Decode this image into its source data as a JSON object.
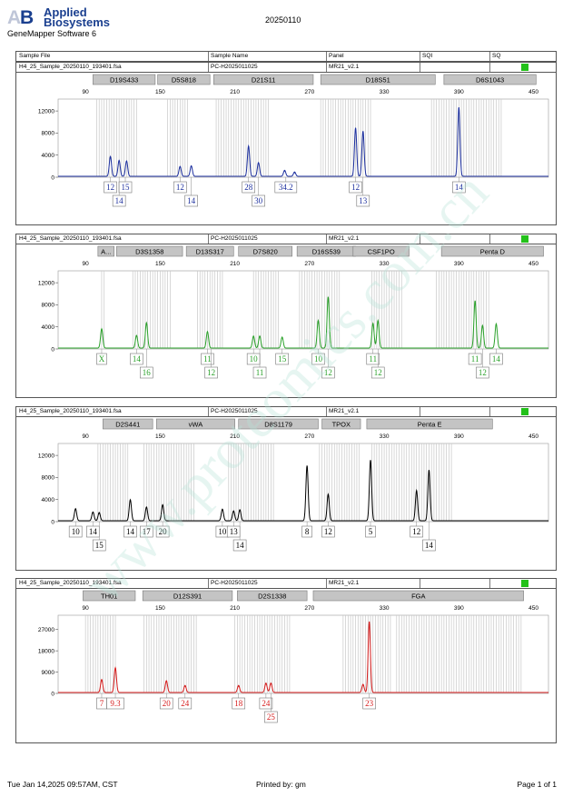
{
  "header": {
    "brand_line1": "Applied",
    "brand_line2": "Biosystems",
    "software": "GeneMapper Software 6",
    "run_date": "20250110",
    "columns": [
      "Sample File",
      "Sample Name",
      "Panel",
      "SQI",
      "SQ"
    ]
  },
  "footer": {
    "printed_on": "Tue Jan 14,2025 09:57AM, CST",
    "printed_by": "Printed by: gm",
    "page": "Page 1 of 1"
  },
  "watermark": "www.proteomics.com.cn",
  "colors": {
    "blue": "#1c2f9e",
    "green": "#2aa12a",
    "black": "#000000",
    "red": "#d61b1b",
    "status": "#23c11a"
  },
  "chart_data": [
    {
      "type": "line",
      "sample_file": "H4_25_Sample_20250110_193401.fsa",
      "sample_name": "PC-H2025011025",
      "panel": "MR21_v2.1",
      "color": "#1c2f9e",
      "x_ticks": [
        90,
        150,
        210,
        270,
        330,
        390,
        450
      ],
      "y_ticks": [
        0,
        4000,
        8000,
        12000
      ],
      "ylim": [
        0,
        13500
      ],
      "xlim": [
        68,
        462
      ],
      "markers": [
        {
          "name": "D19S433",
          "start": 96,
          "end": 146
        },
        {
          "name": "D5S818",
          "start": 148,
          "end": 190
        },
        {
          "name": "D21S11",
          "start": 193,
          "end": 273
        },
        {
          "name": "D18S51",
          "start": 279,
          "end": 371
        },
        {
          "name": "D6S1043",
          "start": 378,
          "end": 452
        }
      ],
      "bins": [
        [
          99,
          131
        ],
        [
          156,
          172
        ],
        [
          195,
          238
        ],
        [
          279,
          320
        ],
        [
          368,
          424
        ]
      ],
      "peaks": [
        {
          "x": 110,
          "height": 3600
        },
        {
          "x": 117,
          "height": 2900
        },
        {
          "x": 123,
          "height": 2800
        },
        {
          "x": 166,
          "height": 1800
        },
        {
          "x": 175,
          "height": 1900
        },
        {
          "x": 221,
          "height": 5500
        },
        {
          "x": 229,
          "height": 2500
        },
        {
          "x": 250,
          "height": 1100
        },
        {
          "x": 258,
          "height": 800
        },
        {
          "x": 307,
          "height": 8800
        },
        {
          "x": 313,
          "height": 8200
        },
        {
          "x": 390,
          "height": 12500
        }
      ],
      "alleles": [
        {
          "label": "12",
          "x": 110,
          "row": 1
        },
        {
          "label": "15",
          "x": 122,
          "row": 1
        },
        {
          "label": "14",
          "x": 117,
          "row": 2
        },
        {
          "label": "12",
          "x": 166,
          "row": 1
        },
        {
          "label": "14",
          "x": 175,
          "row": 2
        },
        {
          "label": "28",
          "x": 221,
          "row": 1
        },
        {
          "label": "30",
          "x": 229,
          "row": 2
        },
        {
          "label": "34.2",
          "x": 251,
          "row": 1
        },
        {
          "label": "12",
          "x": 307,
          "row": 1
        },
        {
          "label": "13",
          "x": 313,
          "row": 2
        },
        {
          "label": "14",
          "x": 390,
          "row": 1
        }
      ]
    },
    {
      "type": "line",
      "sample_file": "H4_25_Sample_20250110_193401.fsa",
      "sample_name": "PC-H2025011025",
      "panel": "MR21_v2.1",
      "color": "#2aa12a",
      "x_ticks": [
        90,
        150,
        210,
        270,
        330,
        390,
        450
      ],
      "y_ticks": [
        0,
        4000,
        8000,
        12000
      ],
      "ylim": [
        0,
        13500
      ],
      "xlim": [
        68,
        462
      ],
      "markers": [
        {
          "name": "A...",
          "start": 100,
          "end": 113
        },
        {
          "name": "D3S1358",
          "start": 115,
          "end": 168
        },
        {
          "name": "D13S317",
          "start": 171,
          "end": 209
        },
        {
          "name": "D7S820",
          "start": 213,
          "end": 256
        },
        {
          "name": "D16S539",
          "start": 260,
          "end": 307
        },
        {
          "name": "CSF1PO",
          "start": 305,
          "end": 350
        },
        {
          "name": "Penta D",
          "start": 376,
          "end": 458
        }
      ],
      "bins": [
        [
          103,
          106
        ],
        [
          128,
          158
        ],
        [
          180,
          200
        ],
        [
          225,
          245
        ],
        [
          262,
          295
        ],
        [
          320,
          345
        ],
        [
          372,
          415
        ]
      ],
      "peaks": [
        {
          "x": 103,
          "height": 3500
        },
        {
          "x": 131,
          "height": 2300
        },
        {
          "x": 139,
          "height": 4600
        },
        {
          "x": 188,
          "height": 3000
        },
        {
          "x": 225,
          "height": 2200
        },
        {
          "x": 230,
          "height": 2200
        },
        {
          "x": 248,
          "height": 2000
        },
        {
          "x": 277,
          "height": 5000
        },
        {
          "x": 285,
          "height": 9300
        },
        {
          "x": 321,
          "height": 4500
        },
        {
          "x": 325,
          "height": 5000
        },
        {
          "x": 403,
          "height": 8600
        },
        {
          "x": 409,
          "height": 4100
        },
        {
          "x": 420,
          "height": 4400
        }
      ],
      "alleles": [
        {
          "label": "X",
          "x": 103,
          "row": 1
        },
        {
          "label": "14",
          "x": 131,
          "row": 1
        },
        {
          "label": "16",
          "x": 139,
          "row": 2
        },
        {
          "label": "11",
          "x": 188,
          "row": 1
        },
        {
          "label": "12",
          "x": 191,
          "row": 2
        },
        {
          "label": "10",
          "x": 225,
          "row": 1
        },
        {
          "label": "11",
          "x": 230,
          "row": 2
        },
        {
          "label": "15",
          "x": 248,
          "row": 1
        },
        {
          "label": "10",
          "x": 277,
          "row": 1
        },
        {
          "label": "12",
          "x": 285,
          "row": 2
        },
        {
          "label": "11",
          "x": 321,
          "row": 1
        },
        {
          "label": "12",
          "x": 325,
          "row": 2
        },
        {
          "label": "11",
          "x": 403,
          "row": 1
        },
        {
          "label": "12",
          "x": 409,
          "row": 2
        },
        {
          "label": "14",
          "x": 420,
          "row": 1
        }
      ]
    },
    {
      "type": "line",
      "sample_file": "H4_25_Sample_20250110_193401.fsa",
      "sample_name": "PC-H2025011025",
      "panel": "MR21_v2.1",
      "color": "#000000",
      "x_ticks": [
        90,
        150,
        210,
        270,
        330,
        390,
        450
      ],
      "y_ticks": [
        0,
        4000,
        8000,
        12000
      ],
      "ylim": [
        0,
        13500
      ],
      "xlim": [
        68,
        462
      ],
      "markers": [
        {
          "name": "D2S441",
          "start": 104,
          "end": 144
        },
        {
          "name": "vWA",
          "start": 147,
          "end": 210
        },
        {
          "name": "D8S1179",
          "start": 213,
          "end": 277
        },
        {
          "name": "TPOX",
          "start": 280,
          "end": 311
        },
        {
          "name": "Penta E",
          "start": 316,
          "end": 417
        }
      ],
      "bins": [
        [
          100,
          124
        ],
        [
          137,
          178
        ],
        [
          205,
          241
        ],
        [
          278,
          310
        ],
        [
          320,
          385
        ]
      ],
      "peaks": [
        {
          "x": 82,
          "height": 2200
        },
        {
          "x": 96,
          "height": 1600
        },
        {
          "x": 101,
          "height": 1500
        },
        {
          "x": 126,
          "height": 3800
        },
        {
          "x": 139,
          "height": 2500
        },
        {
          "x": 152,
          "height": 2900
        },
        {
          "x": 200,
          "height": 2100
        },
        {
          "x": 209,
          "height": 1800
        },
        {
          "x": 214,
          "height": 2000
        },
        {
          "x": 268,
          "height": 10000
        },
        {
          "x": 285,
          "height": 4800
        },
        {
          "x": 319,
          "height": 11000
        },
        {
          "x": 356,
          "height": 5500
        },
        {
          "x": 366,
          "height": 9200
        }
      ],
      "alleles": [
        {
          "label": "10",
          "x": 82,
          "row": 1
        },
        {
          "label": "14",
          "x": 96,
          "row": 1
        },
        {
          "label": "15",
          "x": 101,
          "row": 2
        },
        {
          "label": "14",
          "x": 126,
          "row": 1
        },
        {
          "label": "17",
          "x": 139,
          "row": 1
        },
        {
          "label": "20",
          "x": 152,
          "row": 1
        },
        {
          "label": "10",
          "x": 200,
          "row": 1
        },
        {
          "label": "13",
          "x": 209,
          "row": 1
        },
        {
          "label": "14",
          "x": 214,
          "row": 2
        },
        {
          "label": "8",
          "x": 268,
          "row": 1
        },
        {
          "label": "12",
          "x": 285,
          "row": 1
        },
        {
          "label": "5",
          "x": 319,
          "row": 1
        },
        {
          "label": "12",
          "x": 356,
          "row": 1
        },
        {
          "label": "14",
          "x": 366,
          "row": 2
        }
      ]
    },
    {
      "type": "line",
      "sample_file": "H4_25_Sample_20250110_193401.fsa",
      "sample_name": "PC-H2025011025",
      "panel": "MR21_v2.1",
      "color": "#d61b1b",
      "x_ticks": [
        90,
        150,
        210,
        270,
        330,
        390,
        450
      ],
      "y_ticks": [
        0,
        9000,
        18000,
        27000
      ],
      "ylim": [
        0,
        31500
      ],
      "xlim": [
        68,
        462
      ],
      "markers": [
        {
          "name": "TH01",
          "start": 88,
          "end": 130
        },
        {
          "name": "D12S391",
          "start": 136,
          "end": 208
        },
        {
          "name": "D2S1338",
          "start": 212,
          "end": 268
        },
        {
          "name": "FGA",
          "start": 273,
          "end": 442
        }
      ],
      "bins": [
        [
          90,
          114
        ],
        [
          137,
          180
        ],
        [
          210,
          255
        ],
        [
          297,
          335
        ],
        [
          340,
          440
        ]
      ],
      "peaks": [
        {
          "x": 103,
          "height": 5500
        },
        {
          "x": 114,
          "height": 10500
        },
        {
          "x": 155,
          "height": 5000
        },
        {
          "x": 170,
          "height": 3000
        },
        {
          "x": 213,
          "height": 3000
        },
        {
          "x": 235,
          "height": 4000
        },
        {
          "x": 239,
          "height": 4000
        },
        {
          "x": 313,
          "height": 3500
        },
        {
          "x": 318,
          "height": 30000
        }
      ],
      "alleles": [
        {
          "label": "7",
          "x": 103,
          "row": 1
        },
        {
          "label": "9.3",
          "x": 114,
          "row": 1
        },
        {
          "label": "20",
          "x": 155,
          "row": 1
        },
        {
          "label": "24",
          "x": 170,
          "row": 1
        },
        {
          "label": "18",
          "x": 213,
          "row": 1
        },
        {
          "label": "24",
          "x": 235,
          "row": 1
        },
        {
          "label": "25",
          "x": 239,
          "row": 2
        },
        {
          "label": "23",
          "x": 318,
          "row": 1
        }
      ]
    }
  ]
}
